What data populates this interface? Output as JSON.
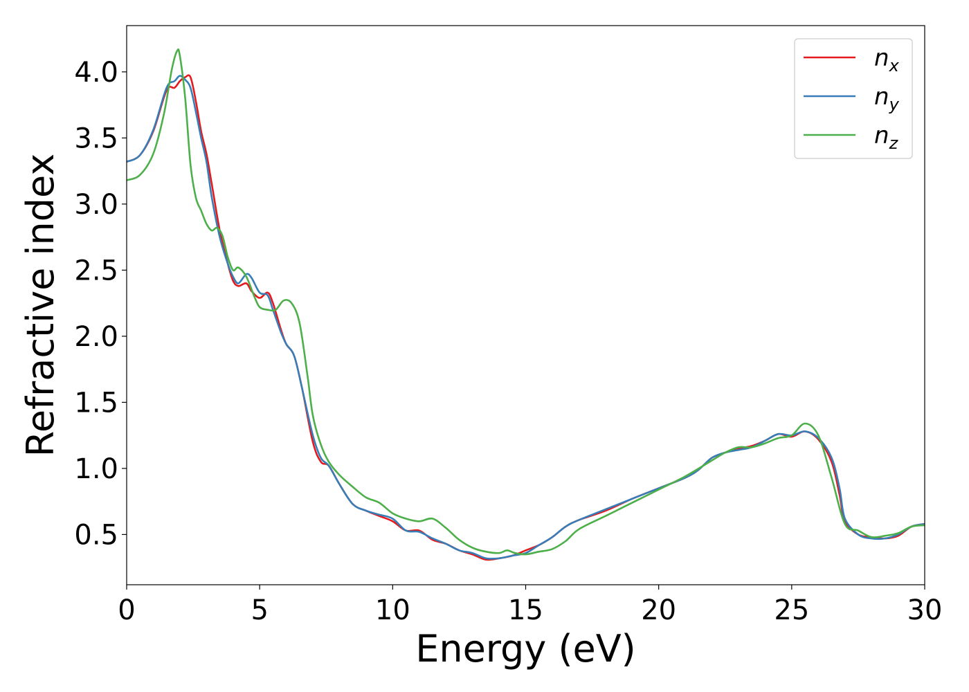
{
  "chart_data": {
    "type": "line",
    "xlabel": "Energy (eV)",
    "ylabel": "Refractive index",
    "xlim": [
      0,
      30
    ],
    "ylim": [
      0.12,
      4.35
    ],
    "xticks": [
      0,
      5,
      10,
      15,
      20,
      25,
      30
    ],
    "xtick_labels": [
      "0",
      "5",
      "10",
      "15",
      "20",
      "25",
      "30"
    ],
    "yticks": [
      0.5,
      1.0,
      1.5,
      2.0,
      2.5,
      3.0,
      3.5,
      4.0
    ],
    "ytick_labels": [
      "0.5",
      "1.0",
      "1.5",
      "2.0",
      "2.5",
      "3.0",
      "3.5",
      "4.0"
    ],
    "grid": false,
    "legend_position": "top-right",
    "series": [
      {
        "name": "n_x",
        "legend_base": "n",
        "legend_sub": "x",
        "color": "#e41a1c",
        "x": [
          0,
          0.5,
          1.0,
          1.5,
          1.8,
          2.0,
          2.2,
          2.4,
          2.6,
          2.8,
          3.0,
          3.2,
          3.5,
          3.8,
          4.0,
          4.2,
          4.5,
          4.7,
          5.0,
          5.3,
          5.5,
          5.8,
          6.0,
          6.3,
          6.6,
          7.0,
          7.3,
          7.6,
          8.0,
          8.5,
          9.0,
          9.5,
          10.0,
          10.5,
          11.0,
          11.5,
          12.0,
          12.5,
          13.0,
          13.5,
          14.0,
          14.5,
          15.0,
          15.5,
          16.0,
          16.5,
          17.0,
          18.0,
          19.0,
          20.0,
          21.0,
          21.5,
          22.0,
          22.5,
          23.0,
          23.5,
          24.0,
          24.5,
          25.0,
          25.5,
          26.0,
          26.5,
          26.8,
          27.0,
          27.5,
          28.0,
          28.5,
          29.0,
          29.5,
          30.0
        ],
        "y": [
          3.32,
          3.37,
          3.55,
          3.86,
          3.88,
          3.93,
          3.96,
          3.96,
          3.78,
          3.55,
          3.38,
          3.15,
          2.8,
          2.55,
          2.42,
          2.38,
          2.4,
          2.34,
          2.29,
          2.33,
          2.25,
          2.05,
          1.94,
          1.85,
          1.6,
          1.2,
          1.05,
          1.02,
          0.88,
          0.73,
          0.68,
          0.64,
          0.6,
          0.53,
          0.53,
          0.46,
          0.43,
          0.38,
          0.35,
          0.31,
          0.32,
          0.34,
          0.38,
          0.42,
          0.48,
          0.56,
          0.61,
          0.68,
          0.77,
          0.85,
          0.93,
          0.99,
          1.08,
          1.12,
          1.15,
          1.17,
          1.21,
          1.26,
          1.24,
          1.28,
          1.22,
          1.05,
          0.8,
          0.6,
          0.5,
          0.48,
          0.47,
          0.49,
          0.56,
          0.58
        ]
      },
      {
        "name": "n_y",
        "legend_base": "n",
        "legend_sub": "y",
        "color": "#377eb8",
        "x": [
          0,
          0.5,
          1.0,
          1.5,
          1.8,
          2.0,
          2.2,
          2.4,
          2.6,
          2.8,
          3.0,
          3.2,
          3.5,
          3.8,
          4.0,
          4.2,
          4.5,
          4.7,
          5.0,
          5.3,
          5.5,
          5.8,
          6.0,
          6.3,
          6.6,
          7.0,
          7.3,
          7.6,
          8.0,
          8.5,
          9.0,
          9.5,
          10.0,
          10.5,
          11.0,
          11.5,
          12.0,
          12.5,
          13.0,
          13.5,
          14.0,
          14.5,
          15.0,
          15.5,
          16.0,
          16.5,
          17.0,
          18.0,
          19.0,
          20.0,
          21.0,
          21.5,
          22.0,
          22.5,
          23.0,
          23.5,
          24.0,
          24.5,
          25.0,
          25.5,
          26.0,
          26.5,
          26.8,
          27.0,
          27.5,
          28.0,
          28.5,
          29.0,
          29.5,
          30.0
        ],
        "y": [
          3.32,
          3.37,
          3.56,
          3.88,
          3.93,
          3.97,
          3.94,
          3.88,
          3.7,
          3.5,
          3.32,
          3.05,
          2.75,
          2.55,
          2.45,
          2.4,
          2.47,
          2.44,
          2.33,
          2.31,
          2.2,
          2.03,
          1.94,
          1.85,
          1.6,
          1.25,
          1.08,
          1.02,
          0.88,
          0.73,
          0.68,
          0.65,
          0.62,
          0.53,
          0.52,
          0.47,
          0.43,
          0.38,
          0.36,
          0.32,
          0.32,
          0.34,
          0.36,
          0.42,
          0.48,
          0.56,
          0.61,
          0.69,
          0.77,
          0.85,
          0.93,
          0.99,
          1.08,
          1.12,
          1.14,
          1.16,
          1.21,
          1.26,
          1.25,
          1.28,
          1.23,
          1.08,
          0.85,
          0.62,
          0.5,
          0.47,
          0.47,
          0.5,
          0.56,
          0.58
        ]
      },
      {
        "name": "n_z",
        "legend_base": "n",
        "legend_sub": "z",
        "color": "#4daf4a",
        "x": [
          0,
          0.5,
          1.0,
          1.4,
          1.7,
          1.9,
          2.0,
          2.2,
          2.4,
          2.6,
          2.8,
          3.0,
          3.2,
          3.4,
          3.6,
          3.8,
          4.0,
          4.2,
          4.5,
          4.8,
          5.0,
          5.3,
          5.6,
          5.9,
          6.2,
          6.5,
          6.8,
          7.0,
          7.3,
          7.6,
          8.0,
          8.5,
          9.0,
          9.5,
          10.0,
          10.5,
          11.0,
          11.5,
          12.0,
          12.5,
          13.0,
          13.5,
          14.0,
          14.3,
          14.6,
          15.0,
          15.5,
          16.0,
          16.5,
          17.0,
          18.0,
          19.0,
          20.0,
          21.0,
          22.0,
          22.5,
          23.0,
          23.5,
          24.0,
          24.5,
          25.0,
          25.5,
          26.0,
          26.5,
          27.0,
          27.5,
          28.0,
          28.5,
          29.0,
          29.5,
          30.0
        ],
        "y": [
          3.18,
          3.22,
          3.38,
          3.68,
          4.02,
          4.16,
          4.12,
          3.8,
          3.3,
          3.05,
          2.95,
          2.85,
          2.8,
          2.82,
          2.76,
          2.6,
          2.5,
          2.52,
          2.45,
          2.3,
          2.22,
          2.2,
          2.2,
          2.27,
          2.25,
          2.1,
          1.7,
          1.4,
          1.18,
          1.05,
          0.95,
          0.86,
          0.78,
          0.74,
          0.66,
          0.62,
          0.6,
          0.62,
          0.55,
          0.46,
          0.4,
          0.37,
          0.36,
          0.38,
          0.36,
          0.35,
          0.37,
          0.39,
          0.45,
          0.54,
          0.64,
          0.74,
          0.84,
          0.94,
          1.06,
          1.12,
          1.16,
          1.16,
          1.19,
          1.23,
          1.25,
          1.34,
          1.25,
          0.93,
          0.58,
          0.53,
          0.48,
          0.49,
          0.51,
          0.56,
          0.57
        ]
      }
    ]
  }
}
